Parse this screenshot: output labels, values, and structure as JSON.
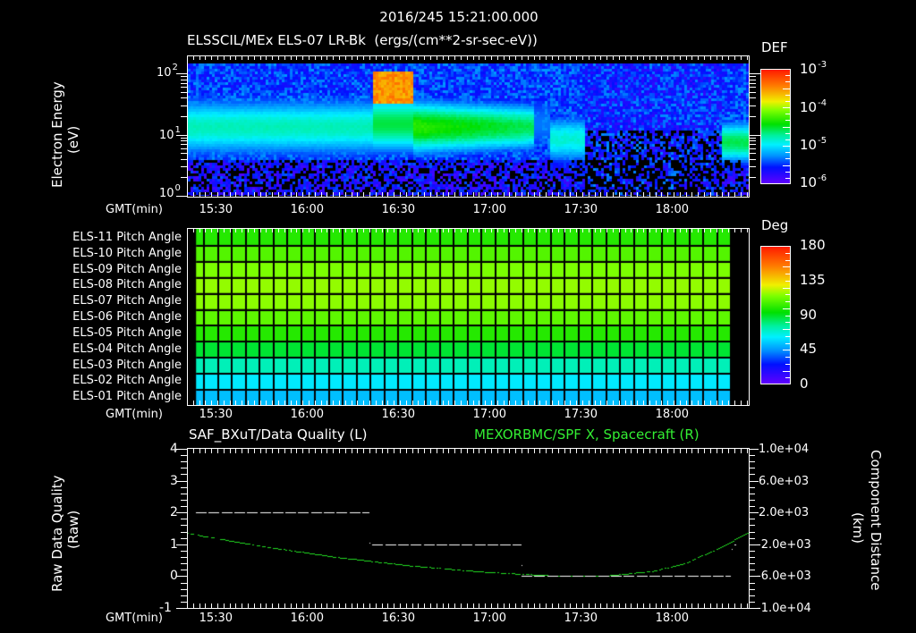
{
  "header": {
    "timestamp": "2016/245 15:21:00.000",
    "subtitle": "ELSSCIL/MEx ELS-07 LR-Bk  (ergs/(cm**2-sr-sec-eV))"
  },
  "panel1": {
    "ylabel_line1": "Electron Energy",
    "ylabel_line2": "(eV)",
    "yticks": [
      {
        "base": "10",
        "exp": "2"
      },
      {
        "base": "10",
        "exp": "1"
      },
      {
        "base": "10",
        "exp": "0"
      }
    ],
    "xaxis_label": "GMT(min)",
    "colorbar": {
      "title": "DEF",
      "ticks": [
        {
          "base": "10",
          "exp": "-3"
        },
        {
          "base": "10",
          "exp": "-4"
        },
        {
          "base": "10",
          "exp": "-5"
        },
        {
          "base": "10",
          "exp": "-6"
        }
      ]
    }
  },
  "panel2": {
    "row_labels": [
      "ELS-11 Pitch Angle",
      "ELS-10 Pitch Angle",
      "ELS-09 Pitch Angle",
      "ELS-08 Pitch Angle",
      "ELS-07 Pitch Angle",
      "ELS-06 Pitch Angle",
      "ELS-05 Pitch Angle",
      "ELS-04 Pitch Angle",
      "ELS-03 Pitch Angle",
      "ELS-02 Pitch Angle",
      "ELS-01 Pitch Angle"
    ],
    "xaxis_label": "GMT(min)",
    "colorbar": {
      "title": "Deg",
      "ticks": [
        "180",
        "135",
        "90",
        "45",
        "0"
      ]
    }
  },
  "panel3": {
    "left_title": "SAF_BXuT/Data Quality (L)",
    "right_title": "MEXORBMC/SPF X, Spacecraft (R)",
    "ylabel_left_line1": "Raw Data Quality",
    "ylabel_left_line2": "(Raw)",
    "ylabel_right_line1": "Component Distance",
    "ylabel_right_line2": "(km)",
    "yticks_left": [
      "4",
      "3",
      "2",
      "1",
      "0",
      "-1"
    ],
    "yticks_right": [
      "1.0e+04",
      "6.0e+03",
      "2.0e+03",
      "-2.0e+03",
      "-6.0e+03",
      "-1.0e+04"
    ],
    "xaxis_label": "GMT(min)"
  },
  "time_ticks": [
    "15:30",
    "16:00",
    "16:30",
    "17:00",
    "17:30",
    "18:00"
  ],
  "colors": {
    "background": "#000000",
    "axis": "#ffffff",
    "spacecraft_x": "#22dd22",
    "data_quality": "#ffffff"
  },
  "chart_data": [
    {
      "type": "heatmap",
      "title": "ELSSCIL/MEx ELS-07 LR-Bk (ergs/(cm**2-sr-sec-eV))",
      "xlabel": "GMT(min)",
      "ylabel": "Electron Energy (eV)",
      "x_ticks": [
        "15:30",
        "16:00",
        "16:30",
        "17:00",
        "17:30",
        "18:00"
      ],
      "x_range": [
        "15:21",
        "18:26"
      ],
      "y_scale": "log",
      "ylim": [
        1,
        150
      ],
      "colorbar": {
        "label": "DEF",
        "scale": "log",
        "range": [
          1e-06,
          0.001
        ]
      },
      "features": [
        {
          "time_range": [
            "15:21",
            "16:22"
          ],
          "energy_range_eV": [
            4,
            40
          ],
          "level": "~2e-5 (cyan-green)"
        },
        {
          "time_range": [
            "16:22",
            "16:35"
          ],
          "energy_range_eV": [
            30,
            100
          ],
          "level": "~5e-4 (orange-red peak)"
        },
        {
          "time_range": [
            "16:35",
            "17:15"
          ],
          "energy_range_eV": [
            6,
            50
          ],
          "level": "~1e-4 (green-yellow)"
        },
        {
          "time_range": [
            "17:20",
            "17:30"
          ],
          "energy_range_eV": [
            4,
            30
          ],
          "level": "~1.5e-5 (cyan)"
        },
        {
          "time_range": [
            "17:35",
            "18:18"
          ],
          "energy_range_eV": [
            1,
            100
          ],
          "level": "~2e-6 (blue-violet, sparse)"
        },
        {
          "time_range": [
            "18:18",
            "18:26"
          ],
          "energy_range_eV": [
            4,
            30
          ],
          "level": "~5e-5 (green)"
        }
      ]
    },
    {
      "type": "heatmap",
      "title": "Pitch Angle by ELS anode",
      "xlabel": "GMT(min)",
      "categories": [
        "ELS-11",
        "ELS-10",
        "ELS-09",
        "ELS-08",
        "ELS-07",
        "ELS-06",
        "ELS-05",
        "ELS-04",
        "ELS-03",
        "ELS-02",
        "ELS-01"
      ],
      "values_deg": [
        100,
        108,
        115,
        118,
        117,
        110,
        100,
        88,
        72,
        60,
        52
      ],
      "colorbar": {
        "label": "Deg",
        "range": [
          0,
          180
        ],
        "ticks": [
          0,
          45,
          90,
          135,
          180
        ]
      },
      "data_time_range": [
        "15:24",
        "18:20"
      ]
    },
    {
      "type": "line",
      "title": "SAF_BXuT/Data Quality (L) & MEXORBMC/SPF X, Spacecraft (R)",
      "xlabel": "GMT(min)",
      "x_ticks": [
        "15:30",
        "16:00",
        "16:30",
        "17:00",
        "17:30",
        "18:00"
      ],
      "series": [
        {
          "name": "SAF_BXuT/Data Quality",
          "axis": "left",
          "ylabel": "Raw Data Quality (Raw)",
          "ylim": [
            -1,
            4
          ],
          "points": [
            {
              "x": "15:24",
              "y": 2
            },
            {
              "x": "16:21",
              "y": 2
            },
            {
              "x": "16:22",
              "y": 1
            },
            {
              "x": "17:11",
              "y": 1
            },
            {
              "x": "17:11",
              "y": 0
            },
            {
              "x": "18:20",
              "y": 0
            }
          ]
        },
        {
          "name": "MEXORBMC/SPF X, Spacecraft",
          "axis": "right",
          "ylabel": "Component Distance (km)",
          "ylim": [
            -10000,
            10000
          ],
          "points": [
            {
              "x": "15:21",
              "y": -600
            },
            {
              "x": "15:45",
              "y": -2200
            },
            {
              "x": "16:10",
              "y": -3600
            },
            {
              "x": "16:35",
              "y": -4700
            },
            {
              "x": "17:00",
              "y": -5500
            },
            {
              "x": "17:20",
              "y": -5900
            },
            {
              "x": "17:40",
              "y": -5900
            },
            {
              "x": "17:55",
              "y": -5300
            },
            {
              "x": "18:05",
              "y": -4300
            },
            {
              "x": "18:15",
              "y": -2600
            },
            {
              "x": "18:26",
              "y": -400
            }
          ]
        }
      ]
    }
  ]
}
